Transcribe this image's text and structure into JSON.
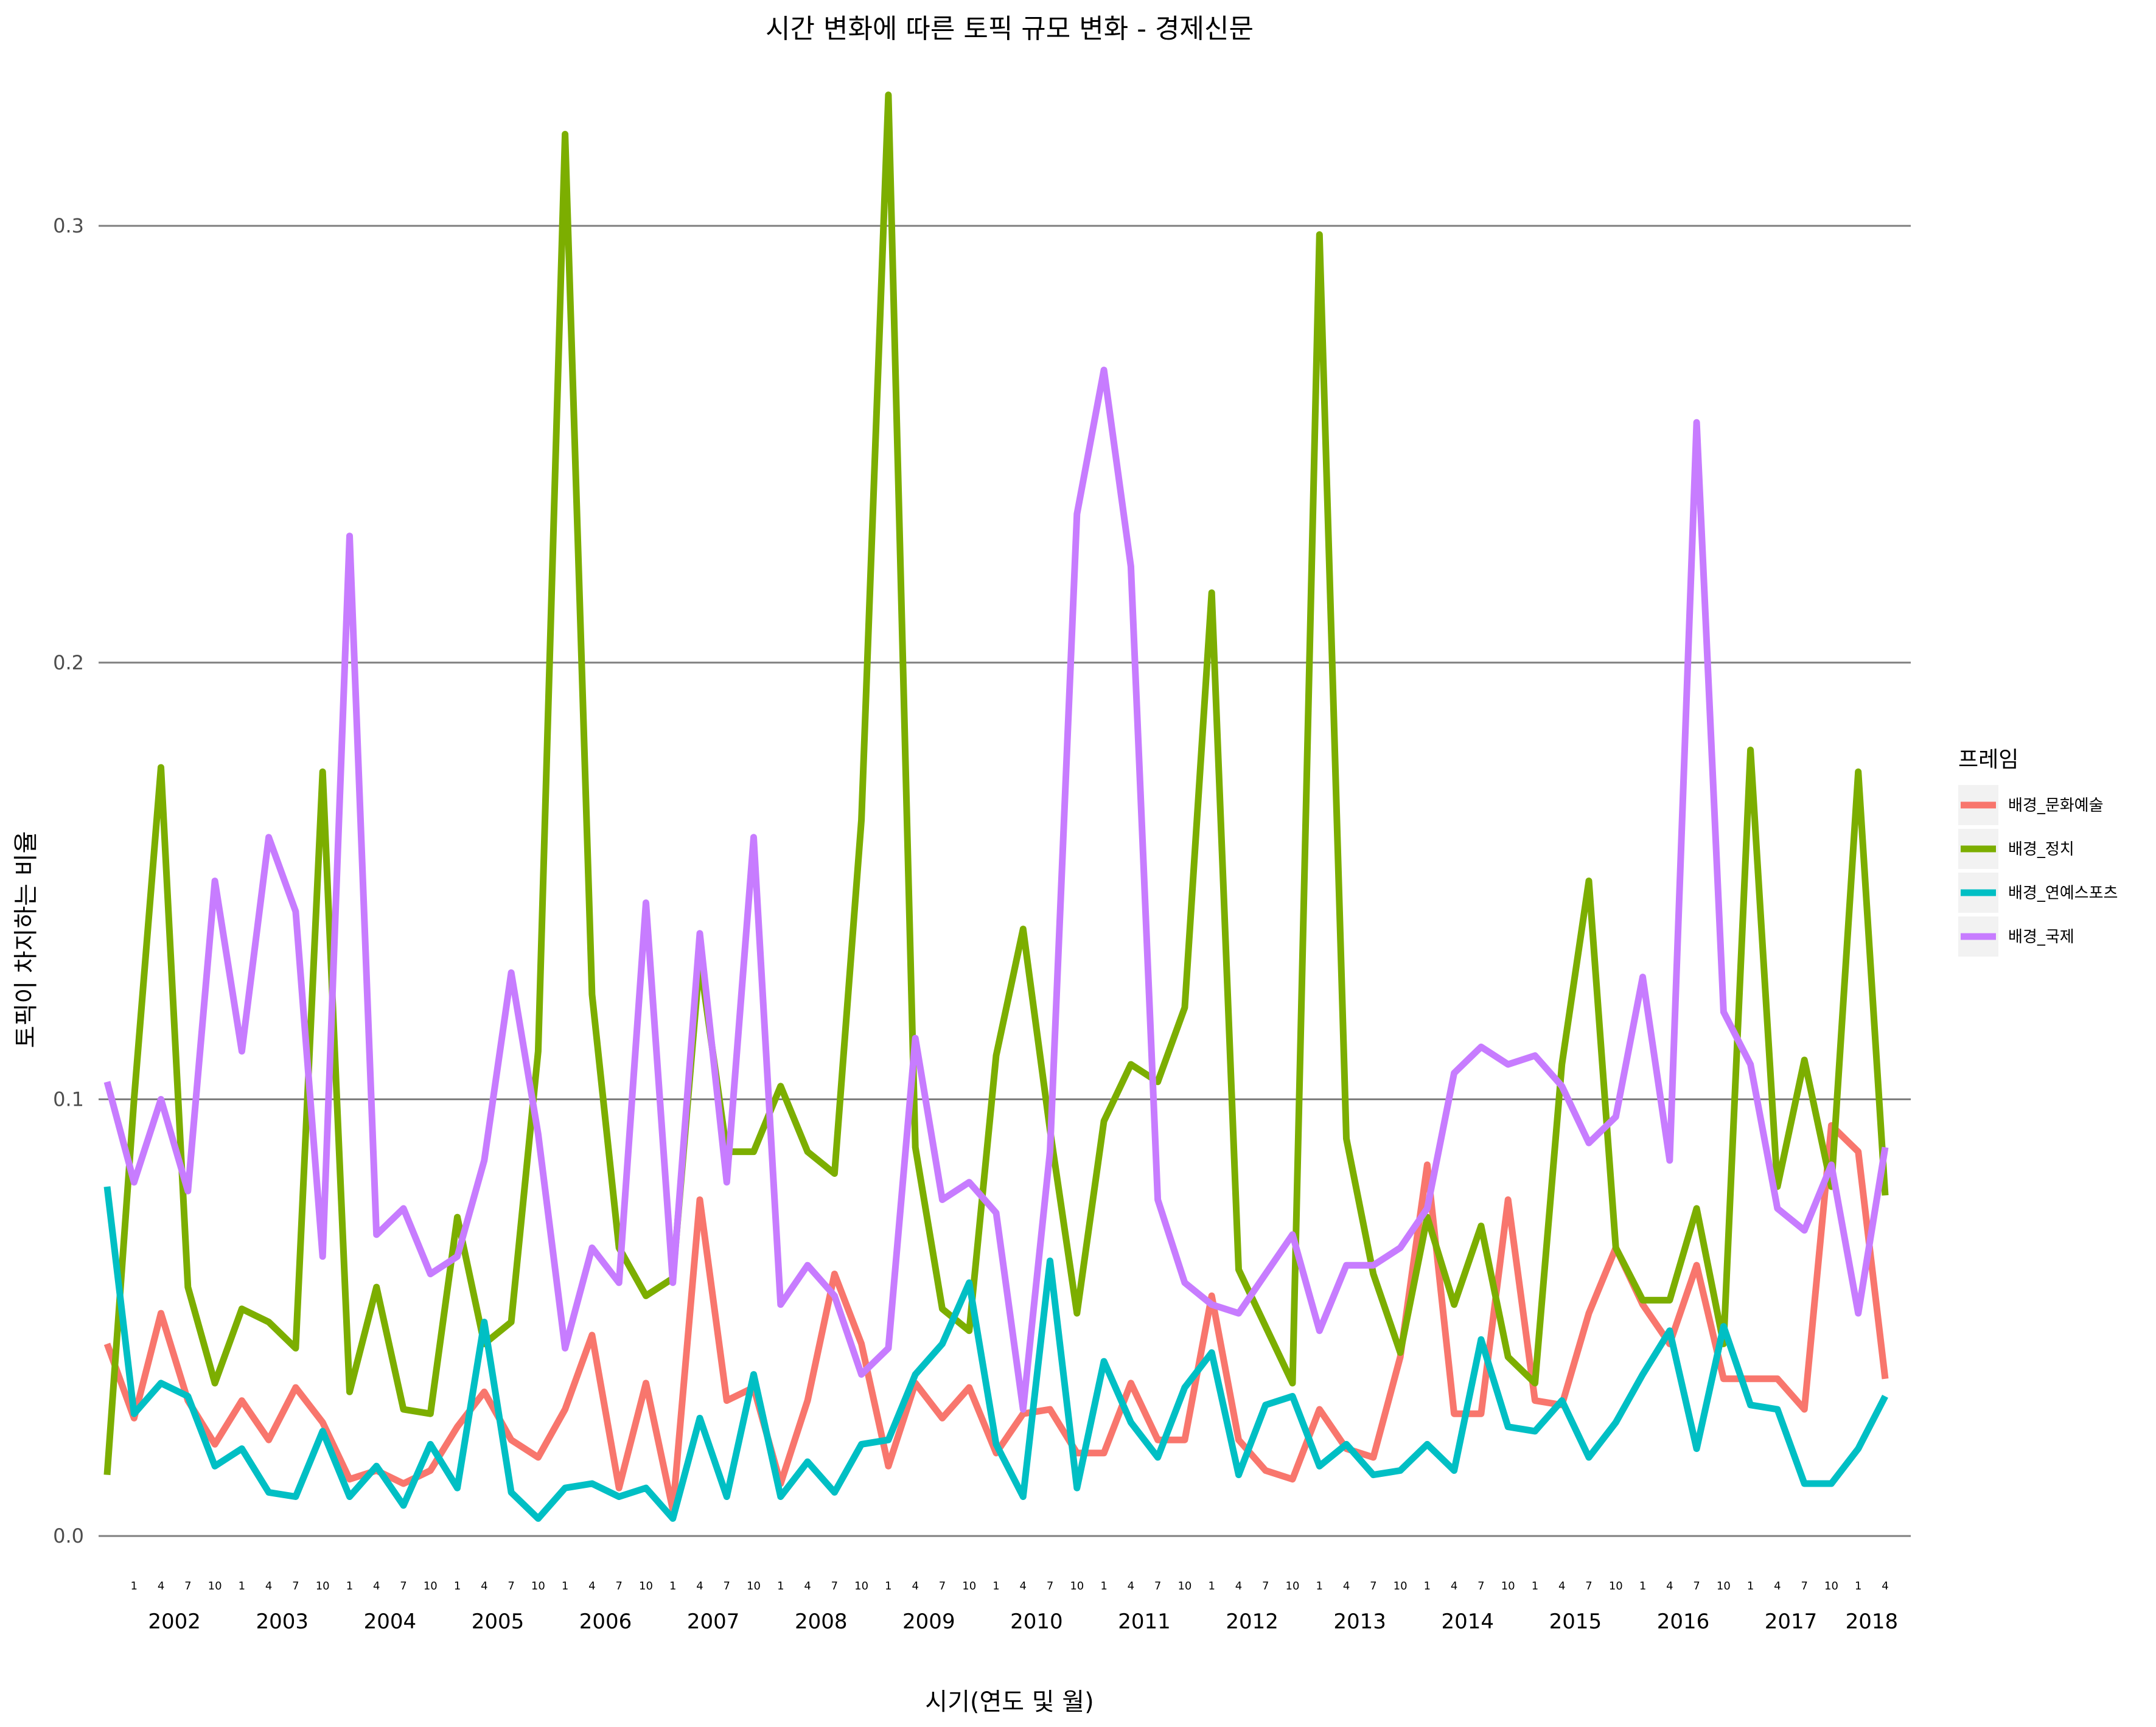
{
  "chart_data": {
    "type": "line",
    "title": "시간 변화에 따른 토픽 규모 변화 - 경제신문",
    "xlabel": "시기(연도 및 월)",
    "ylabel": "토픽이 차지하는 비율",
    "ylim": [
      -0.005,
      0.335
    ],
    "yticks": [
      0.0,
      0.1,
      0.2,
      0.3
    ],
    "ytick_labels": [
      "0.0",
      "0.1",
      "0.2",
      "0.3"
    ],
    "grid": true,
    "legend_title": "프레임",
    "legend_position": "right",
    "x_start": "2001-10",
    "x_step_months": 3,
    "month_tick_labels": [
      "1",
      "4",
      "7",
      "10",
      "1",
      "4",
      "7",
      "10",
      "1",
      "4",
      "7",
      "10",
      "1",
      "4",
      "7",
      "10",
      "1",
      "4",
      "7",
      "10",
      "1",
      "4",
      "7",
      "10",
      "1",
      "4",
      "7",
      "10",
      "1",
      "4",
      "7",
      "10",
      "1",
      "4",
      "7",
      "10",
      "1",
      "4",
      "7",
      "10",
      "1",
      "4",
      "7",
      "10",
      "1",
      "4",
      "7",
      "10",
      "1",
      "4",
      "7",
      "10",
      "1",
      "4",
      "7",
      "10",
      "1",
      "4",
      "7",
      "10",
      "1",
      "4",
      "7",
      "10",
      "1",
      "4"
    ],
    "year_labels": [
      "2002",
      "2003",
      "2004",
      "2005",
      "2006",
      "2007",
      "2008",
      "2009",
      "2010",
      "2011",
      "2012",
      "2013",
      "2014",
      "2015",
      "2016",
      "2017",
      "2018"
    ],
    "series": [
      {
        "name": "배경_문화예술",
        "color": "#F8766D",
        "values": [
          0.044,
          0.027,
          0.051,
          0.031,
          0.021,
          0.031,
          0.022,
          0.034,
          0.026,
          0.013,
          0.015,
          0.012,
          0.015,
          0.025,
          0.033,
          0.022,
          0.018,
          0.029,
          0.046,
          0.011,
          0.035,
          0.006,
          0.077,
          0.031,
          0.034,
          0.012,
          0.031,
          0.06,
          0.044,
          0.016,
          0.035,
          0.027,
          0.034,
          0.019,
          0.028,
          0.029,
          0.019,
          0.019,
          0.035,
          0.022,
          0.022,
          0.055,
          0.022,
          0.015,
          0.013,
          0.029,
          0.02,
          0.018,
          0.041,
          0.085,
          0.028,
          0.028,
          0.077,
          0.031,
          0.03,
          0.051,
          0.066,
          0.053,
          0.044,
          0.062,
          0.036,
          0.036,
          0.036,
          0.029,
          0.094,
          0.088,
          0.036
        ]
      },
      {
        "name": "배경_정치",
        "color": "#7CAE00",
        "values": [
          0.014,
          0.1,
          0.176,
          0.057,
          0.035,
          0.052,
          0.049,
          0.043,
          0.175,
          0.033,
          0.057,
          0.029,
          0.028,
          0.073,
          0.044,
          0.049,
          0.111,
          0.321,
          0.124,
          0.066,
          0.055,
          0.059,
          0.132,
          0.088,
          0.088,
          0.103,
          0.088,
          0.083,
          0.164,
          0.33,
          0.089,
          0.052,
          0.047,
          0.11,
          0.139,
          0.093,
          0.051,
          0.095,
          0.108,
          0.104,
          0.121,
          0.216,
          0.061,
          0.048,
          0.035,
          0.298,
          0.091,
          0.06,
          0.042,
          0.073,
          0.053,
          0.071,
          0.041,
          0.035,
          0.108,
          0.15,
          0.066,
          0.054,
          0.054,
          0.075,
          0.044,
          0.18,
          0.08,
          0.109,
          0.08,
          0.175,
          0.078
        ]
      },
      {
        "name": "배경_연예스포츠",
        "color": "#00BFC4",
        "values": [
          0.08,
          0.028,
          0.035,
          0.032,
          0.016,
          0.02,
          0.01,
          0.009,
          0.024,
          0.009,
          0.016,
          0.007,
          0.021,
          0.011,
          0.049,
          0.01,
          0.004,
          0.011,
          0.012,
          0.009,
          0.011,
          0.004,
          0.027,
          0.009,
          0.037,
          0.009,
          0.017,
          0.01,
          0.021,
          0.022,
          0.037,
          0.044,
          0.058,
          0.021,
          0.009,
          0.063,
          0.011,
          0.04,
          0.026,
          0.018,
          0.034,
          0.042,
          0.014,
          0.03,
          0.032,
          0.016,
          0.021,
          0.014,
          0.015,
          0.021,
          0.015,
          0.045,
          0.025,
          0.024,
          0.031,
          0.018,
          0.026,
          0.037,
          0.047,
          0.02,
          0.048,
          0.03,
          0.029,
          0.012,
          0.012,
          0.02,
          0.032
        ]
      },
      {
        "name": "배경_국제",
        "color": "#C77CFF",
        "values": [
          0.104,
          0.081,
          0.1,
          0.079,
          0.15,
          0.111,
          0.16,
          0.143,
          0.064,
          0.229,
          0.069,
          0.075,
          0.06,
          0.064,
          0.086,
          0.129,
          0.092,
          0.043,
          0.066,
          0.058,
          0.145,
          0.058,
          0.138,
          0.081,
          0.16,
          0.053,
          0.062,
          0.055,
          0.037,
          0.043,
          0.114,
          0.077,
          0.081,
          0.074,
          0.029,
          0.088,
          0.234,
          0.267,
          0.222,
          0.077,
          0.058,
          0.053,
          0.051,
          0.06,
          0.069,
          0.047,
          0.062,
          0.062,
          0.066,
          0.075,
          0.106,
          0.112,
          0.108,
          0.11,
          0.103,
          0.09,
          0.096,
          0.128,
          0.086,
          0.255,
          0.12,
          0.108,
          0.075,
          0.07,
          0.085,
          0.051,
          0.089
        ]
      }
    ]
  }
}
